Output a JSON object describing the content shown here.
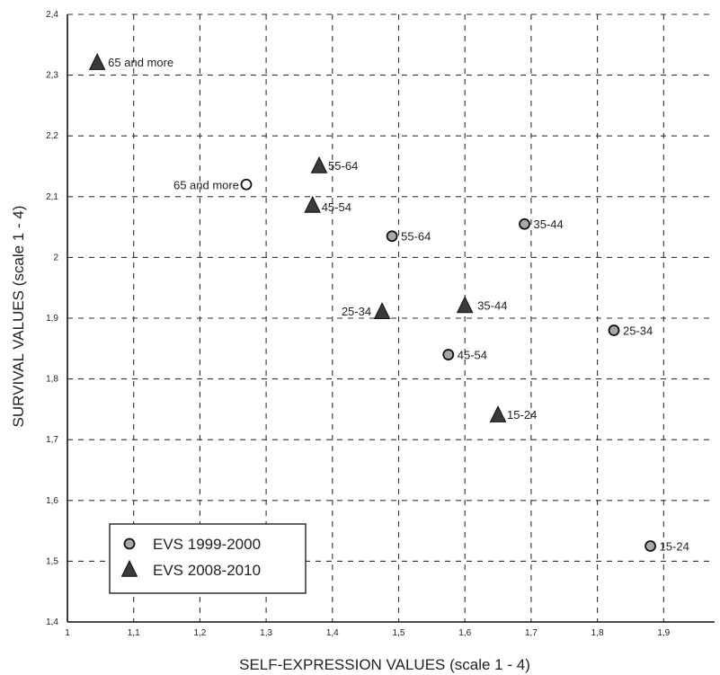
{
  "chart_data": {
    "type": "scatter",
    "xlabel": "SELF-EXPRESSION VALUES (scale 1 - 4)",
    "ylabel": "SURVIVAL VALUES (scale 1 - 4)",
    "xlim": [
      1,
      2.0
    ],
    "ylim": [
      1.4,
      2.4
    ],
    "x_ticks": [
      "1",
      "1,1",
      "1,2",
      "1,3",
      "1,4",
      "1,5",
      "1,6",
      "1,7",
      "1,8",
      "1,9"
    ],
    "y_ticks": [
      "1,4",
      "1,5",
      "1,6",
      "1,7",
      "1,8",
      "1,9",
      "2",
      "2,1",
      "2,2",
      "2,3",
      "2,4"
    ],
    "grid": true,
    "legend_position": "bottom-left",
    "series": [
      {
        "name": "EVS 1999-2000",
        "marker": "circle",
        "color": "#a8a8a8",
        "points": [
          {
            "x": 1.27,
            "y": 2.12,
            "label": "65 and more"
          },
          {
            "x": 1.49,
            "y": 2.035,
            "label": "55-64"
          },
          {
            "x": 1.575,
            "y": 1.84,
            "label": "45-54"
          },
          {
            "x": 1.69,
            "y": 2.055,
            "label": "35-44"
          },
          {
            "x": 1.825,
            "y": 1.88,
            "label": "25-34"
          },
          {
            "x": 1.88,
            "y": 1.525,
            "label": "15-24"
          }
        ]
      },
      {
        "name": "EVS 2008-2010",
        "marker": "triangle",
        "color": "#3a3a3a",
        "points": [
          {
            "x": 1.045,
            "y": 2.32,
            "label": "65 and more"
          },
          {
            "x": 1.38,
            "y": 2.15,
            "label": "55-64"
          },
          {
            "x": 1.37,
            "y": 2.085,
            "label": "45-54"
          },
          {
            "x": 1.6,
            "y": 1.92,
            "label": "35-44"
          },
          {
            "x": 1.475,
            "y": 1.91,
            "label": "25-34"
          },
          {
            "x": 1.65,
            "y": 1.74,
            "label": "15-24"
          }
        ]
      }
    ]
  }
}
